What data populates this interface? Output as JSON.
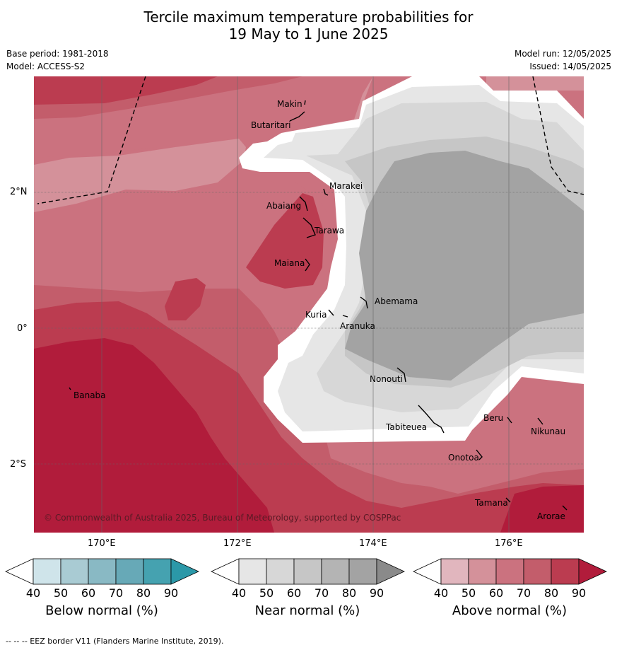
{
  "title_line1": "Tercile maximum temperature probabilities for",
  "title_line2": "19 May to 1 June 2025",
  "base_period": "Base period: 1981-2018",
  "model": "Model: ACCESS-S2",
  "model_run": "Model run: 12/05/2025",
  "issued": "Issued: 14/05/2025",
  "copyright": "© Commonwealth of Australia 2025, Bureau of Meteorology, supported by COSPPac",
  "lat_ticks": [
    "2°N",
    "0°",
    "2°S"
  ],
  "lon_ticks": [
    "170°E",
    "172°E",
    "174°E",
    "176°E"
  ],
  "places": [
    {
      "name": "Makin"
    },
    {
      "name": "Butaritari"
    },
    {
      "name": "Marakei"
    },
    {
      "name": "Abaiang"
    },
    {
      "name": "Tarawa"
    },
    {
      "name": "Maiana"
    },
    {
      "name": "Abemama"
    },
    {
      "name": "Kuria"
    },
    {
      "name": "Aranuka"
    },
    {
      "name": "Banaba"
    },
    {
      "name": "Nonouti"
    },
    {
      "name": "Tabiteuea"
    },
    {
      "name": "Beru"
    },
    {
      "name": "Nikunau"
    },
    {
      "name": "Onotoa"
    },
    {
      "name": "Tamana"
    },
    {
      "name": "Arorae"
    }
  ],
  "colorbars": [
    {
      "title": "Below normal (%)",
      "labels": [
        "40",
        "50",
        "60",
        "70",
        "80",
        "90"
      ],
      "colors": [
        "#cfe4ea",
        "#a9cbd3",
        "#89b9c4",
        "#67a9b7",
        "#45a2b0",
        "#2b98a8"
      ]
    },
    {
      "title": "Near normal (%)",
      "labels": [
        "40",
        "50",
        "60",
        "70",
        "80",
        "90"
      ],
      "colors": [
        "#e6e6e6",
        "#d7d7d7",
        "#c6c6c6",
        "#b4b4b4",
        "#a3a3a3",
        "#8a8a8a"
      ]
    },
    {
      "title": "Above normal (%)",
      "labels": [
        "40",
        "50",
        "60",
        "70",
        "80",
        "90"
      ],
      "colors": [
        "#e1b6be",
        "#d4919a",
        "#cb727f",
        "#c35d6b",
        "#bb3c50",
        "#b11c3b"
      ]
    }
  ],
  "footer": "--  --  -- EEZ border V11 (Flanders Marine Institute, 2019)."
}
